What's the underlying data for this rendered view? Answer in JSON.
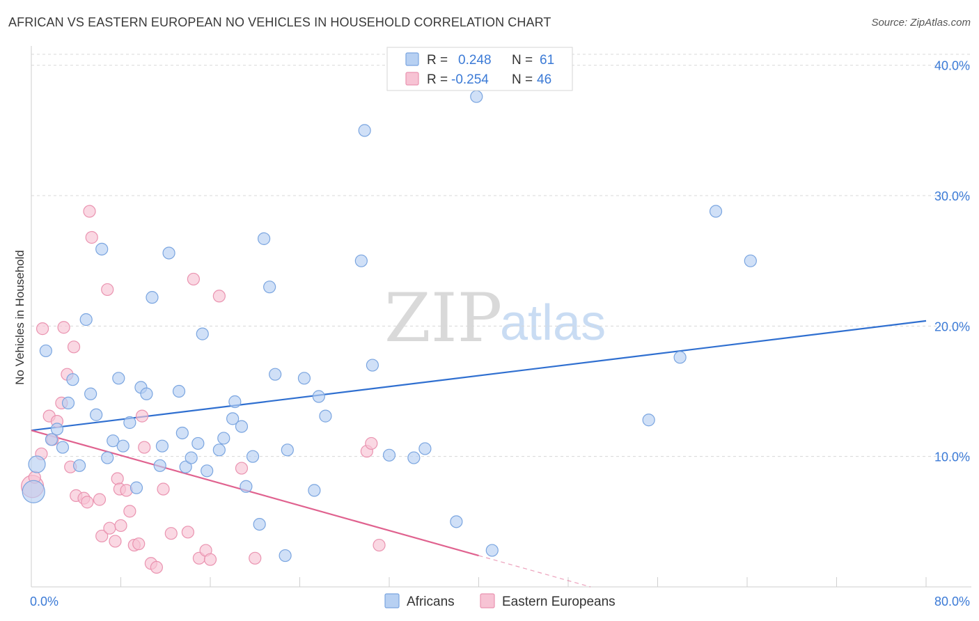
{
  "title": "AFRICAN VS EASTERN EUROPEAN NO VEHICLES IN HOUSEHOLD CORRELATION CHART",
  "source": "Source: ZipAtlas.com",
  "watermark": {
    "zip": "ZIP",
    "atlas": "atlas"
  },
  "colors": {
    "africans_fill": "#b7d0f2",
    "africans_stroke": "#7aa5e0",
    "africans_line": "#2f6fd0",
    "eastern_fill": "#f7c3d4",
    "eastern_stroke": "#ea93b0",
    "eastern_line": "#e0628f",
    "grid": "#d8d8d8",
    "axis_text": "#3b7ad6"
  },
  "legend": {
    "rows": [
      {
        "r_label": "R =",
        "r_value": "0.248",
        "n_label": "N =",
        "n_value": "61"
      },
      {
        "r_label": "R =",
        "r_value": "-0.254",
        "n_label": "N =",
        "n_value": "46"
      }
    ]
  },
  "chart_data": {
    "type": "scatter",
    "title": "AFRICAN VS EASTERN EUROPEAN NO VEHICLES IN HOUSEHOLD CORRELATION CHART",
    "xlabel": "",
    "ylabel": "No Vehicles in Household",
    "xlim": [
      0,
      80
    ],
    "ylim": [
      0,
      41
    ],
    "x_tick_labels": [
      "0.0%",
      "80.0%"
    ],
    "y_ticks": [
      10,
      20,
      30,
      40
    ],
    "y_tick_labels": [
      "10.0%",
      "20.0%",
      "30.0%",
      "40.0%"
    ],
    "grid": true,
    "legend_position": "top-center",
    "series": [
      {
        "name": "Africans",
        "r": 0.248,
        "n": 61,
        "trend": {
          "x0": 0,
          "y0": 12.0,
          "x1": 80,
          "y1": 20.4
        },
        "points": [
          [
            0.2,
            7.3,
            3
          ],
          [
            0.5,
            9.4,
            2
          ],
          [
            1.3,
            18.1,
            1
          ],
          [
            2.3,
            12.1,
            1
          ],
          [
            1.8,
            11.3,
            1
          ],
          [
            2.8,
            10.7,
            1
          ],
          [
            3.3,
            14.1,
            1
          ],
          [
            3.7,
            15.9,
            1
          ],
          [
            4.3,
            9.3,
            1
          ],
          [
            4.9,
            20.5,
            1
          ],
          [
            5.3,
            14.8,
            1
          ],
          [
            5.8,
            13.2,
            1
          ],
          [
            6.3,
            25.9,
            1
          ],
          [
            6.8,
            9.9,
            1
          ],
          [
            7.3,
            11.2,
            1
          ],
          [
            7.8,
            16.0,
            1
          ],
          [
            8.2,
            10.8,
            1
          ],
          [
            8.8,
            12.6,
            1
          ],
          [
            9.4,
            7.6,
            1
          ],
          [
            9.8,
            15.3,
            1
          ],
          [
            10.3,
            14.8,
            1
          ],
          [
            10.8,
            22.2,
            1
          ],
          [
            11.5,
            9.3,
            1
          ],
          [
            11.7,
            10.8,
            1
          ],
          [
            12.3,
            25.6,
            1
          ],
          [
            13.2,
            15.0,
            1
          ],
          [
            13.5,
            11.8,
            1
          ],
          [
            13.8,
            9.2,
            1
          ],
          [
            14.3,
            9.9,
            1
          ],
          [
            14.9,
            11.0,
            1
          ],
          [
            15.3,
            19.4,
            1
          ],
          [
            15.7,
            8.9,
            1
          ],
          [
            16.8,
            10.5,
            1
          ],
          [
            17.2,
            11.4,
            1
          ],
          [
            18.0,
            12.9,
            1
          ],
          [
            18.2,
            14.2,
            1
          ],
          [
            18.8,
            12.3,
            1
          ],
          [
            19.2,
            7.7,
            1
          ],
          [
            19.8,
            10.0,
            1
          ],
          [
            20.4,
            4.8,
            1
          ],
          [
            20.8,
            26.7,
            1
          ],
          [
            21.3,
            23.0,
            1
          ],
          [
            21.8,
            16.3,
            1
          ],
          [
            22.7,
            2.4,
            1
          ],
          [
            22.9,
            10.5,
            1
          ],
          [
            24.4,
            16.0,
            1
          ],
          [
            25.3,
            7.4,
            1
          ],
          [
            25.7,
            14.6,
            1
          ],
          [
            26.3,
            13.1,
            1
          ],
          [
            29.5,
            25.0,
            1
          ],
          [
            29.8,
            35.0,
            1
          ],
          [
            30.5,
            17.0,
            1
          ],
          [
            32.0,
            10.1,
            1
          ],
          [
            34.2,
            9.9,
            1
          ],
          [
            35.2,
            10.6,
            1
          ],
          [
            38.0,
            5.0,
            1
          ],
          [
            39.8,
            37.6,
            1
          ],
          [
            41.2,
            2.8,
            1
          ],
          [
            55.2,
            12.8,
            1
          ],
          [
            58.0,
            17.6,
            1
          ],
          [
            61.2,
            28.8,
            1
          ],
          [
            64.3,
            25.0,
            1
          ]
        ]
      },
      {
        "name": "Eastern Europeans",
        "r": -0.254,
        "n": 46,
        "trend": {
          "x0": 0,
          "y0": 12.0,
          "x1": 40,
          "y1": 2.4
        },
        "trend_dashed_end": {
          "x": 50,
          "y": 0
        },
        "points": [
          [
            0.1,
            7.7,
            3
          ],
          [
            0.3,
            8.4,
            1
          ],
          [
            0.9,
            10.2,
            1
          ],
          [
            1.0,
            19.8,
            1
          ],
          [
            1.6,
            13.1,
            1
          ],
          [
            1.9,
            11.3,
            1
          ],
          [
            2.3,
            12.7,
            1
          ],
          [
            2.7,
            14.1,
            1
          ],
          [
            2.9,
            19.9,
            1
          ],
          [
            3.2,
            16.3,
            1
          ],
          [
            3.5,
            9.2,
            1
          ],
          [
            3.8,
            18.4,
            1
          ],
          [
            4.0,
            7.0,
            1
          ],
          [
            4.7,
            6.8,
            1
          ],
          [
            5.0,
            6.5,
            1
          ],
          [
            5.2,
            28.8,
            1
          ],
          [
            5.4,
            26.8,
            1
          ],
          [
            6.1,
            6.7,
            1
          ],
          [
            6.3,
            3.9,
            1
          ],
          [
            6.8,
            22.8,
            1
          ],
          [
            7.0,
            4.5,
            1
          ],
          [
            7.5,
            3.5,
            1
          ],
          [
            7.7,
            8.3,
            1
          ],
          [
            7.9,
            7.5,
            1
          ],
          [
            8.0,
            4.7,
            1
          ],
          [
            8.5,
            7.4,
            1
          ],
          [
            8.8,
            5.8,
            1
          ],
          [
            9.2,
            3.2,
            1
          ],
          [
            9.6,
            3.3,
            1
          ],
          [
            9.9,
            13.1,
            1
          ],
          [
            10.1,
            10.7,
            1
          ],
          [
            10.7,
            1.8,
            1
          ],
          [
            11.2,
            1.5,
            1
          ],
          [
            11.8,
            7.5,
            1
          ],
          [
            12.5,
            4.1,
            1
          ],
          [
            14.0,
            4.2,
            1
          ],
          [
            14.5,
            23.6,
            1
          ],
          [
            15.0,
            2.2,
            1
          ],
          [
            15.6,
            2.8,
            1
          ],
          [
            16.0,
            2.1,
            1
          ],
          [
            16.8,
            22.3,
            1
          ],
          [
            18.8,
            9.1,
            1
          ],
          [
            20.0,
            2.2,
            1
          ],
          [
            30.0,
            10.4,
            1
          ],
          [
            30.4,
            11.0,
            1
          ],
          [
            31.1,
            3.2,
            1
          ]
        ]
      }
    ]
  },
  "bottom_legend": [
    "Africans",
    "Eastern Europeans"
  ]
}
